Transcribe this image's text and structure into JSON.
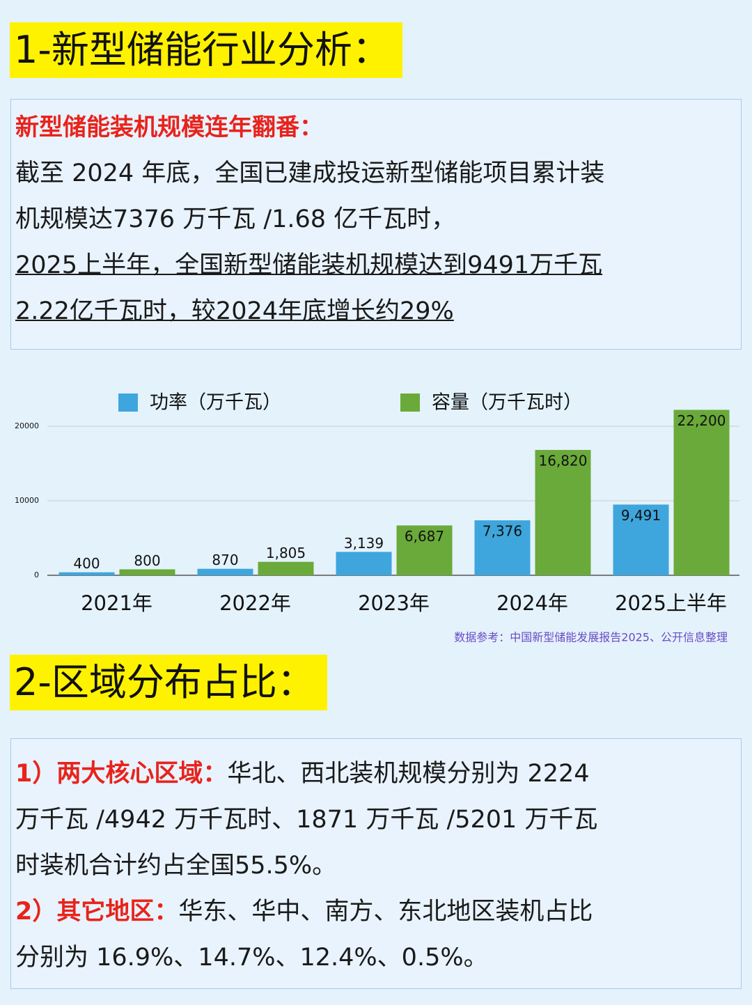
{
  "section1": {
    "title": "1-新型储能行业分析：",
    "heading": "新型储能装机规模连年翻番：",
    "lines": [
      "截至 2024 年底，全国已建成投运新型储能项目累计装",
      "机规模达7376 万千瓦 /1.68 亿千瓦时，"
    ],
    "underlined_lines": [
      "2025上半年，全国新型储能装机规模达到9491万千瓦",
      "2.22亿千瓦时，较2024年底增长约29%"
    ]
  },
  "chart_data": {
    "type": "bar",
    "categories": [
      "2021年",
      "2022年",
      "2023年",
      "2024年",
      "2025上半年"
    ],
    "series": [
      {
        "name": "功率（万千瓦）",
        "color": "#3ea6dd",
        "values": [
          400,
          870,
          3139,
          7376,
          9491
        ],
        "value_labels": [
          "400",
          "870",
          "3,139",
          "7,376",
          "9,491"
        ]
      },
      {
        "name": "容量（万千瓦时）",
        "color": "#6aaa3a",
        "values": [
          800,
          1805,
          6687,
          16820,
          22200
        ],
        "value_labels": [
          "800",
          "1,805",
          "6,687",
          "16,820",
          "22,200"
        ]
      }
    ],
    "ylim": [
      0,
      22500
    ],
    "yticks": [
      0,
      10000,
      20000
    ],
    "grid": true,
    "legend": "top"
  },
  "source": "数据参考：中国新型储能发展报告2025、公开信息整理",
  "section2": {
    "title": "2-区域分布占比：",
    "items": [
      {
        "label": "1）两大核心区域：",
        "lines": [
          "华北、西北装机规模分别为 2224",
          "万千瓦 /4942 万千瓦时、1871 万千瓦 /5201 万千瓦",
          "时装机合计约占全国55.5%。"
        ]
      },
      {
        "label": "2）其它地区：",
        "lines": [
          "华东、华中、南方、东北地区装机占比",
          "分别为 16.9%、14.7%、12.4%、0.5%。"
        ]
      }
    ]
  }
}
